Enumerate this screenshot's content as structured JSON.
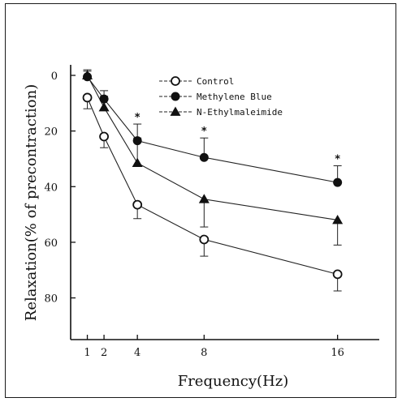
{
  "chart_data": {
    "type": "line",
    "xlabel": "Frequency(Hz)",
    "ylabel": "Relaxation(% of precontraction)",
    "x_ticks": [
      1,
      2,
      4,
      8,
      16
    ],
    "y_ticks": [
      0,
      20,
      40,
      60,
      80
    ],
    "xlim": [
      0,
      18.5
    ],
    "ylim": [
      0,
      90
    ],
    "y_inverted": true,
    "grid": false,
    "legend_position": "top-center",
    "series": [
      {
        "name": "Control",
        "marker": "open-circle",
        "x": [
          1,
          2,
          4,
          8,
          16
        ],
        "y": [
          8,
          22,
          46.5,
          59,
          71.5
        ],
        "err": [
          4,
          4,
          5,
          6,
          6
        ]
      },
      {
        "name": "Methylene Blue",
        "marker": "filled-circle",
        "x": [
          1,
          2,
          4,
          8,
          16
        ],
        "y": [
          0.5,
          8.5,
          23.5,
          29.5,
          38.5
        ],
        "err": [
          2,
          3,
          6,
          7,
          6
        ]
      },
      {
        "name": "N-Ethylmaleimide",
        "marker": "filled-triangle",
        "x": [
          1,
          2,
          4,
          8,
          16
        ],
        "y": [
          0,
          11.5,
          31.5,
          44.5,
          52
        ],
        "err": [
          2,
          4,
          9,
          10,
          9
        ]
      }
    ],
    "annotations": [
      {
        "text": "*",
        "x": 4
      },
      {
        "text": "*",
        "x": 8
      },
      {
        "text": "*",
        "x": 16
      }
    ]
  }
}
